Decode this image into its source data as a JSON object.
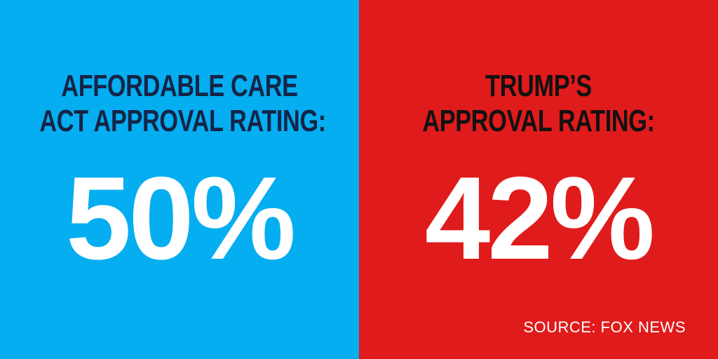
{
  "left_panel": {
    "heading_line1": "AFFORDABLE CARE",
    "heading_line2": "ACT APPROVAL RATING:",
    "value": "50%",
    "background_color": "#05aef0",
    "heading_color": "#152447"
  },
  "right_panel": {
    "heading_line1": "TRUMP’S",
    "heading_line2": "APPROVAL RATING:",
    "value": "42%",
    "background_color": "#e01b1b",
    "heading_color": "#111111"
  },
  "source": "SOURCE: FOX NEWS"
}
